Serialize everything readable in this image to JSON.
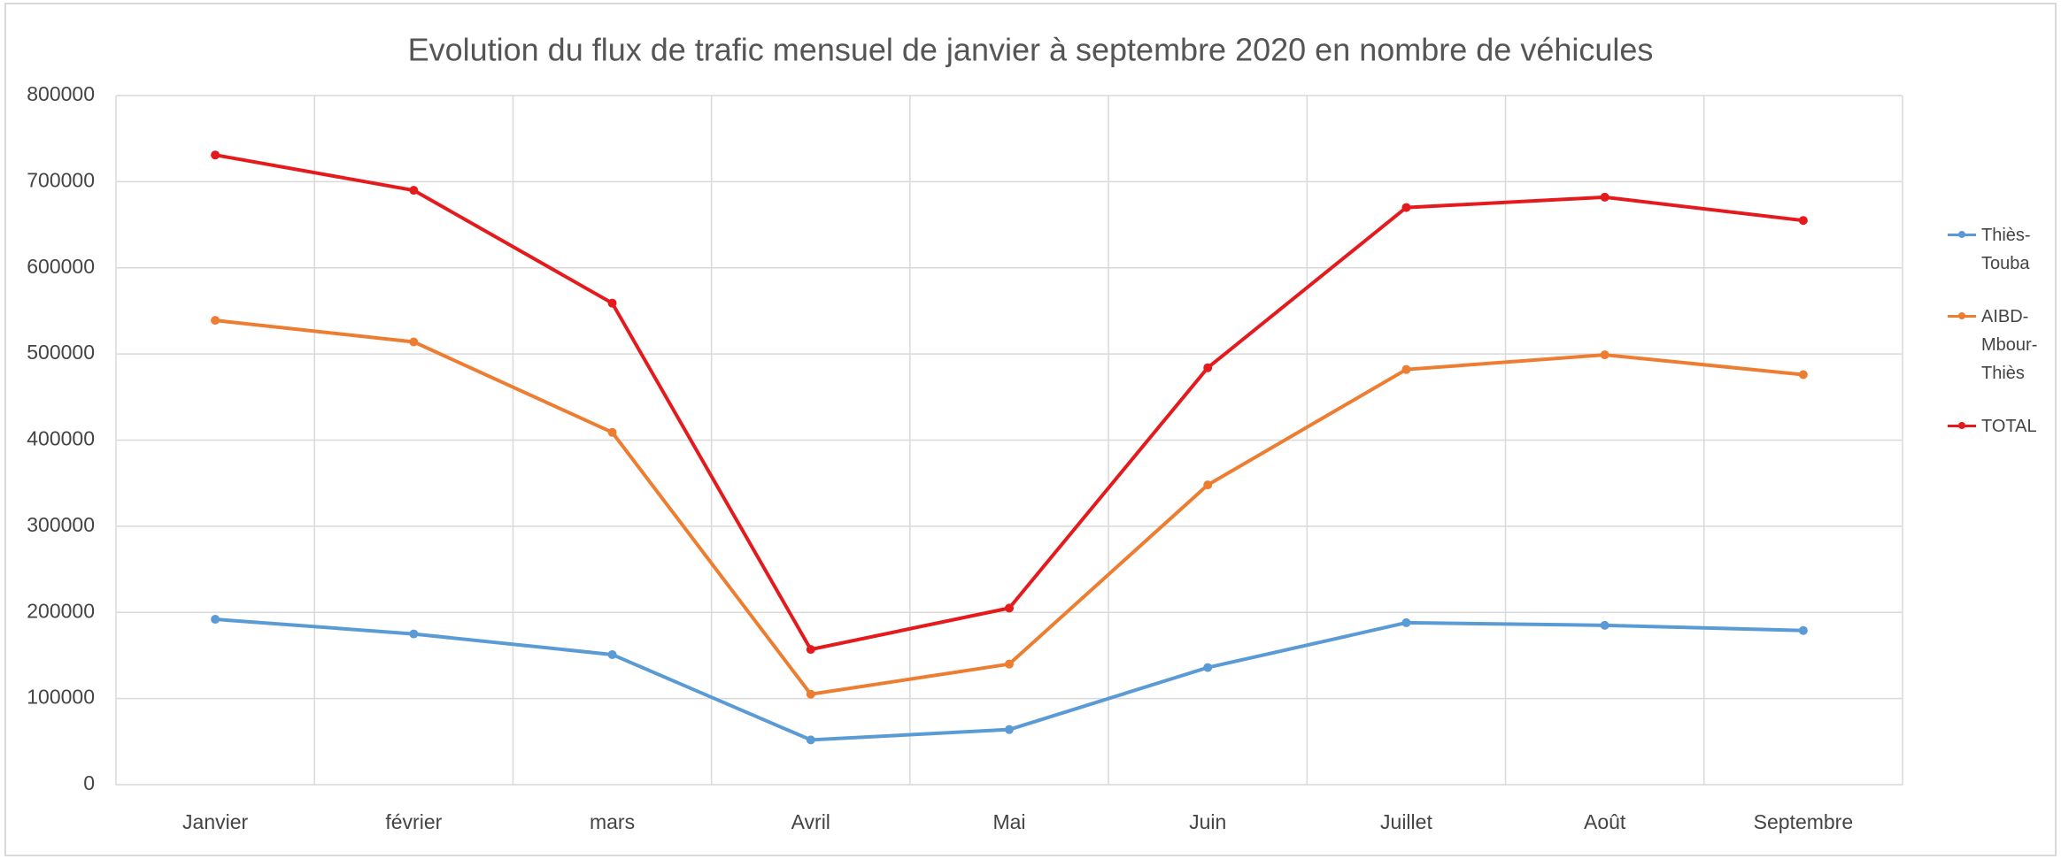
{
  "chart_data": {
    "type": "line",
    "title": "Evolution du flux de trafic mensuel de janvier à septembre 2020 en nombre de véhicules",
    "categories": [
      "Janvier",
      "février",
      "mars",
      "Avril",
      "Mai",
      "Juin",
      "Juillet",
      "Août",
      "Septembre"
    ],
    "series": [
      {
        "name": "Thiès-Touba",
        "color": "#5b9bd5",
        "values": [
          192000,
          175000,
          151000,
          52000,
          64000,
          136000,
          188000,
          185000,
          179000
        ]
      },
      {
        "name": "AIBD-Mbour-Thiès",
        "color": "#ed7d31",
        "values": [
          539000,
          514000,
          409000,
          105000,
          140000,
          348000,
          482000,
          499000,
          476000
        ]
      },
      {
        "name": "TOTAL",
        "color": "#e41a1c",
        "values": [
          731000,
          690000,
          559000,
          157000,
          205000,
          484000,
          670000,
          682000,
          655000
        ]
      }
    ],
    "ylim": [
      0,
      800000
    ],
    "yticks": [
      0,
      100000,
      200000,
      300000,
      400000,
      500000,
      600000,
      700000,
      800000
    ],
    "grid": true,
    "legend": "right"
  }
}
